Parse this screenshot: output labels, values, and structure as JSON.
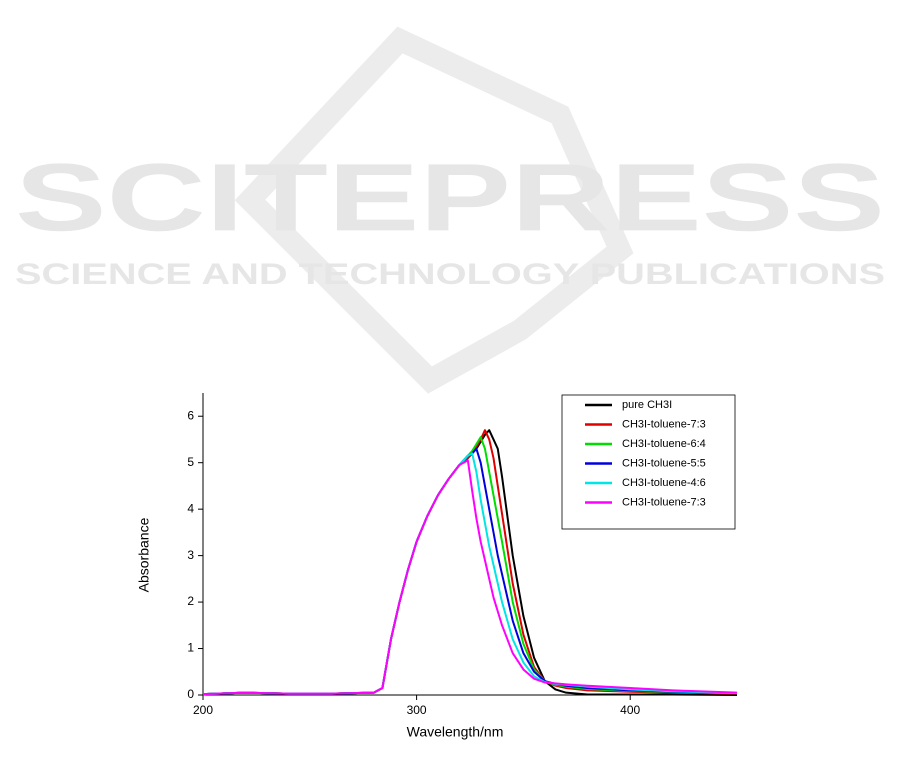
{
  "watermark": {
    "title": "SCITEPRESS",
    "subtitle": "SCIENCE AND TECHNOLOGY PUBLICATIONS"
  },
  "chart_data": {
    "type": "line",
    "xlabel": "Wavelength/nm",
    "ylabel": "Absorbance",
    "x": [
      200,
      220,
      240,
      260,
      280,
      284,
      288,
      292,
      296,
      300,
      305,
      310,
      315,
      320,
      324,
      326,
      328,
      330,
      332,
      334,
      336,
      338,
      340,
      345,
      350,
      355,
      360,
      365,
      370,
      380,
      400,
      420,
      450
    ],
    "xlim": [
      200,
      450
    ],
    "xticks": [
      200,
      300,
      400
    ],
    "ylim": [
      0,
      6.5
    ],
    "yticks": [
      0,
      1,
      2,
      3,
      4,
      5,
      6
    ],
    "legend": "upper right",
    "series": [
      {
        "name": "pure CH3I",
        "color": "#000000",
        "values": [
          0.02,
          0.05,
          0.03,
          0.03,
          0.05,
          0.15,
          1.2,
          2.0,
          2.7,
          3.3,
          3.85,
          4.3,
          4.65,
          4.95,
          5.1,
          5.2,
          5.3,
          5.45,
          5.6,
          5.7,
          5.5,
          5.3,
          4.7,
          3.0,
          1.7,
          0.8,
          0.3,
          0.12,
          0.05,
          0.01,
          0.01,
          0.01,
          0.0
        ]
      },
      {
        "name": "CH3I-toluene-7:3",
        "color": "#e00000",
        "values": [
          0.02,
          0.05,
          0.03,
          0.03,
          0.05,
          0.15,
          1.2,
          2.0,
          2.7,
          3.3,
          3.85,
          4.3,
          4.65,
          4.95,
          5.1,
          5.2,
          5.35,
          5.5,
          5.7,
          5.5,
          5.1,
          4.5,
          3.9,
          2.4,
          1.3,
          0.6,
          0.3,
          0.2,
          0.15,
          0.1,
          0.07,
          0.05,
          0.03
        ]
      },
      {
        "name": "CH3I-toluene-6:4",
        "color": "#00dd00",
        "values": [
          0.02,
          0.05,
          0.03,
          0.03,
          0.05,
          0.15,
          1.2,
          2.0,
          2.7,
          3.3,
          3.85,
          4.3,
          4.65,
          4.95,
          5.15,
          5.25,
          5.4,
          5.55,
          5.3,
          4.8,
          4.3,
          3.8,
          3.3,
          2.0,
          1.1,
          0.55,
          0.3,
          0.22,
          0.18,
          0.13,
          0.09,
          0.06,
          0.04
        ]
      },
      {
        "name": "CH3I-toluene-5:5",
        "color": "#0000dd",
        "values": [
          0.02,
          0.05,
          0.03,
          0.03,
          0.05,
          0.15,
          1.2,
          2.0,
          2.7,
          3.3,
          3.85,
          4.3,
          4.65,
          4.95,
          5.15,
          5.2,
          5.3,
          5.0,
          4.5,
          4.0,
          3.5,
          3.0,
          2.6,
          1.6,
          0.9,
          0.5,
          0.3,
          0.24,
          0.2,
          0.15,
          0.1,
          0.07,
          0.04
        ]
      },
      {
        "name": "CH3I-toluene-4:6",
        "color": "#00e5e5",
        "values": [
          0.02,
          0.05,
          0.03,
          0.03,
          0.05,
          0.15,
          1.2,
          2.0,
          2.7,
          3.3,
          3.85,
          4.3,
          4.65,
          4.95,
          5.15,
          5.2,
          4.8,
          4.2,
          3.7,
          3.2,
          2.8,
          2.4,
          2.0,
          1.2,
          0.7,
          0.4,
          0.28,
          0.24,
          0.22,
          0.18,
          0.12,
          0.08,
          0.04
        ]
      },
      {
        "name": "CH3I-toluene-7:3",
        "color": "#ff00ff",
        "values": [
          0.02,
          0.05,
          0.03,
          0.03,
          0.05,
          0.15,
          1.2,
          2.0,
          2.7,
          3.3,
          3.85,
          4.3,
          4.65,
          4.95,
          5.05,
          4.4,
          3.8,
          3.3,
          2.9,
          2.5,
          2.1,
          1.8,
          1.5,
          0.9,
          0.55,
          0.35,
          0.27,
          0.25,
          0.23,
          0.2,
          0.15,
          0.1,
          0.05
        ]
      }
    ]
  }
}
